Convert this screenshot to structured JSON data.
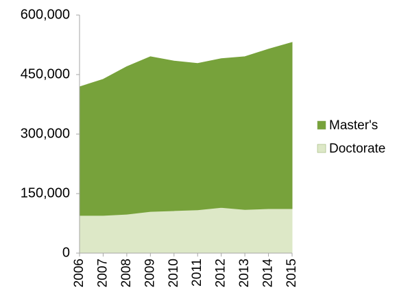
{
  "chart_data": {
    "type": "area",
    "categories": [
      "2006",
      "2007",
      "2008",
      "2009",
      "2010",
      "2011",
      "2012",
      "2013",
      "2014",
      "2015"
    ],
    "series": [
      {
        "name": "Doctorate",
        "color": "#dde8c7",
        "values": [
          95000,
          95000,
          98000,
          105000,
          107000,
          109000,
          115000,
          110000,
          112000,
          112000
        ]
      },
      {
        "name": "Master's",
        "color": "#77a23b",
        "values": [
          324000,
          343000,
          372000,
          390000,
          377000,
          369000,
          375000,
          385000,
          402000,
          419000
        ]
      }
    ],
    "stacked": true,
    "ylim": [
      0,
      600000
    ],
    "yticks": [
      0,
      {
        "value": 150000,
        "label": "150,000"
      },
      {
        "value": 300000,
        "label": "300,000"
      },
      {
        "value": 450000,
        "label": "450,000"
      },
      {
        "value": 600000,
        "label": "600,000"
      }
    ],
    "legend": "right"
  }
}
